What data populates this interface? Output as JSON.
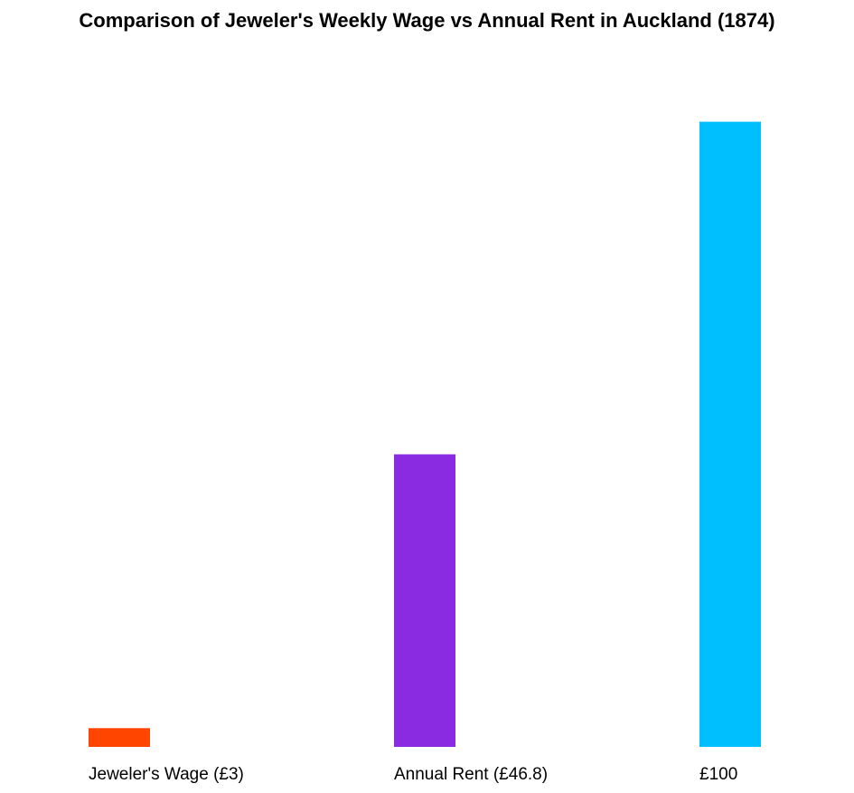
{
  "chart_data": {
    "type": "bar",
    "title": "Comparison of Jeweler's Weekly Wage vs Annual Rent in Auckland (1874)",
    "xlabel": "",
    "ylabel": "",
    "categories": [
      "Jeweler's Wage (£3)",
      "Annual Rent (£46.8)",
      "£100"
    ],
    "values": [
      3,
      46.8,
      100
    ],
    "colors": [
      "#FF4500",
      "#8A2BE2",
      "#00BFFF"
    ],
    "ylim": [
      0,
      104
    ],
    "grid": false,
    "legend": "none"
  }
}
